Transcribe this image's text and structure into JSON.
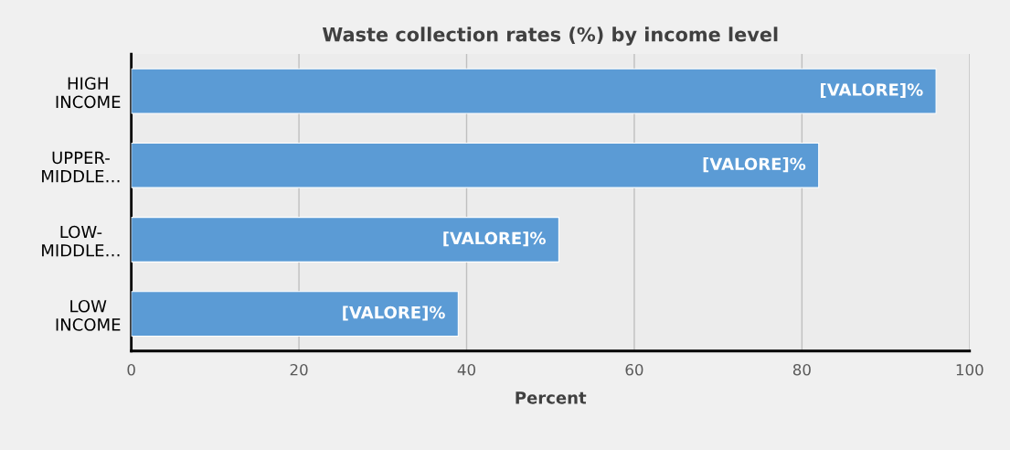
{
  "chart_data": {
    "type": "bar",
    "orientation": "horizontal",
    "title": "Waste collection rates (%) by income level",
    "xlabel": "Percent",
    "categories": [
      "HIGH\nINCOME",
      "UPPER-\nMIDDLE…",
      "LOW-\nMIDDLE…",
      "LOW\nINCOME"
    ],
    "values": [
      96,
      82,
      51,
      39
    ],
    "value_labels": [
      "[VALORE]%",
      "[VALORE]%",
      "[VALORE]%",
      "[VALORE]%"
    ],
    "color": "#5b9bd5",
    "xlim": [
      0,
      100
    ],
    "xticks": [
      0,
      20,
      40,
      60,
      80,
      100
    ],
    "grid": "x",
    "legend": false
  }
}
